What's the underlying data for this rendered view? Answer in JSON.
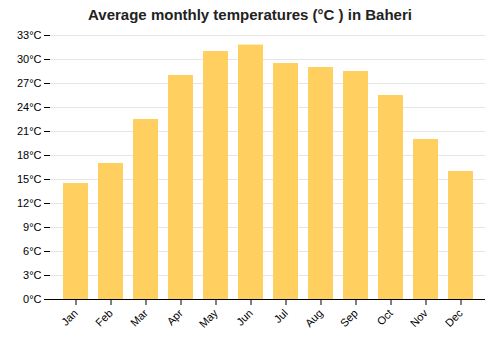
{
  "chart_data": {
    "type": "bar",
    "title": "Average monthly temperatures (°C ) in Baheri",
    "categories": [
      "Jan",
      "Feb",
      "Mar",
      "Apr",
      "May",
      "Jun",
      "Jul",
      "Aug",
      "Sep",
      "Oct",
      "Nov",
      "Dec"
    ],
    "values": [
      14.5,
      17.0,
      22.5,
      28.0,
      31.0,
      31.8,
      29.5,
      29.0,
      28.5,
      25.5,
      20.0,
      16.0
    ],
    "color": "#FFD060",
    "ylim": [
      0,
      33
    ],
    "yticks": [
      {
        "value": 0,
        "label": "0°C"
      },
      {
        "value": 3,
        "label": "3°C"
      },
      {
        "value": 6,
        "label": "6°C"
      },
      {
        "value": 9,
        "label": "9°C"
      },
      {
        "value": 12,
        "label": "12°C"
      },
      {
        "value": 15,
        "label": "15°C"
      },
      {
        "value": 18,
        "label": "18°C"
      },
      {
        "value": 21,
        "label": "21°C"
      },
      {
        "value": 24,
        "label": "24°C"
      },
      {
        "value": 27,
        "label": "27°C"
      },
      {
        "value": 30,
        "label": "30°C"
      },
      {
        "value": 33,
        "label": "33°C"
      }
    ],
    "grid": true
  }
}
